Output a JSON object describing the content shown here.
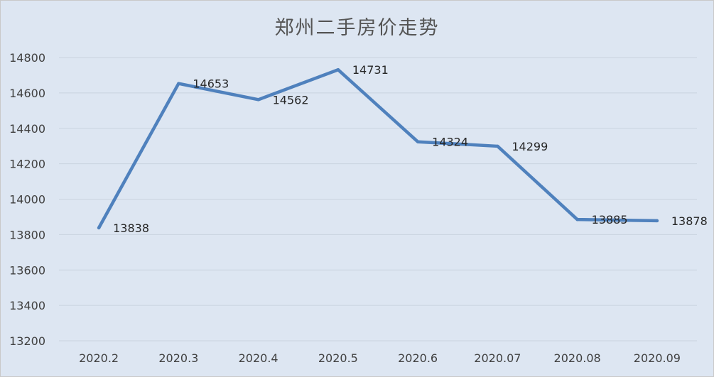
{
  "chart_data": {
    "type": "line",
    "title": "郑州二手房价走势",
    "categories": [
      "2020.2",
      "2020.3",
      "2020.4",
      "2020.5",
      "2020.6",
      "2020.07",
      "2020.08",
      "2020.09"
    ],
    "values": [
      13838,
      14653,
      14562,
      14731,
      14324,
      14299,
      13885,
      13878
    ],
    "ylim": [
      13200,
      14800
    ],
    "yticks": [
      "14800",
      "14600",
      "14400",
      "14200",
      "14000",
      "13800",
      "13600",
      "13400",
      "13200"
    ],
    "grid": true,
    "legend": "none",
    "xlabel": "",
    "ylabel": "",
    "colors": {
      "line": "#4f81bd",
      "background": "#dde6f2",
      "grid": "#c9d3df"
    }
  }
}
